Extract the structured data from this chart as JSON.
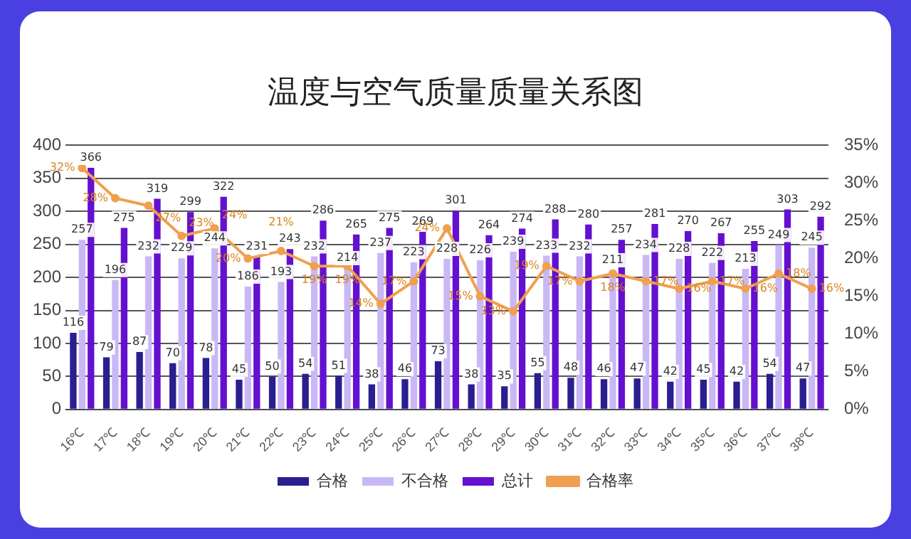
{
  "chart_data": {
    "type": "bar",
    "title": "温度与空气质量质量关系图",
    "categories": [
      "16℃",
      "17℃",
      "18℃",
      "19℃",
      "20℃",
      "21℃",
      "22℃",
      "23℃",
      "24℃",
      "25℃",
      "26℃",
      "27℃",
      "28℃",
      "29℃",
      "30℃",
      "31℃",
      "32℃",
      "33℃",
      "34℃",
      "35℃",
      "36℃",
      "37℃",
      "38℃"
    ],
    "series": [
      {
        "name": "合格",
        "color": "#2a1f8f",
        "values": [
          116,
          79,
          87,
          70,
          78,
          45,
          50,
          54,
          51,
          38,
          46,
          73,
          38,
          35,
          55,
          48,
          46,
          47,
          42,
          45,
          42,
          54,
          47
        ]
      },
      {
        "name": "不合格",
        "color": "#c9b8f5",
        "values": [
          257,
          196,
          232,
          229,
          244,
          186,
          193,
          232,
          214,
          237,
          223,
          228,
          226,
          239,
          233,
          232,
          211,
          234,
          228,
          222,
          213,
          249,
          245
        ]
      },
      {
        "name": "总计",
        "color": "#6410d0",
        "values": [
          366,
          275,
          319,
          299,
          322,
          231,
          243,
          286,
          265,
          275,
          269,
          301,
          264,
          274,
          288,
          280,
          257,
          281,
          270,
          267,
          255,
          303,
          292
        ]
      },
      {
        "name": "合格率",
        "type": "line",
        "axis": "y2",
        "color": "#f0a050",
        "values": [
          32,
          28,
          27,
          23,
          24,
          20,
          21,
          19,
          19,
          14,
          17,
          24,
          15,
          13,
          19,
          17,
          18,
          17,
          16,
          17,
          16,
          18,
          16
        ],
        "value_labels": [
          "32%",
          "28%",
          "27%",
          "23%",
          "24%",
          "20%",
          "21%",
          "19%",
          "19%",
          "14%",
          "17%",
          "24%",
          "15%",
          "13%",
          "19%",
          "17%",
          "18%",
          "17%",
          "16%",
          "17%",
          "16%",
          "18%",
          "16%"
        ]
      }
    ],
    "ylim": [
      0,
      400
    ],
    "yticks": [
      0,
      50,
      100,
      150,
      200,
      250,
      300,
      350,
      400
    ],
    "y2lim": [
      0,
      35
    ],
    "y2ticks": [
      {
        "value": 0,
        "label": "0%"
      },
      {
        "value": 5,
        "label": "5%"
      },
      {
        "value": 10,
        "label": "10%"
      },
      {
        "value": 15,
        "label": "15%"
      },
      {
        "value": 20,
        "label": "20%"
      },
      {
        "value": 25,
        "label": "25%"
      },
      {
        "value": 30,
        "label": "30%"
      },
      {
        "value": 35,
        "label": "35%"
      }
    ],
    "grid": "y",
    "legend": "bottom",
    "marker": "circle",
    "line_style": "solid",
    "data_labels": true
  }
}
